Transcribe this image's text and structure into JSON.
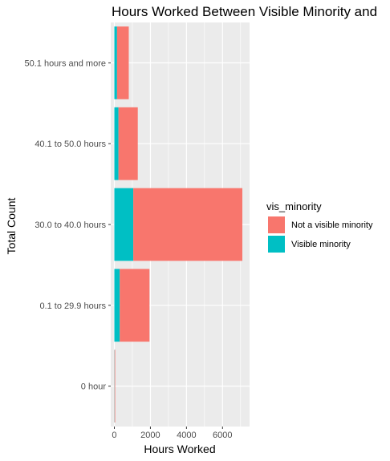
{
  "chart_data": {
    "type": "bar",
    "orientation": "horizontal",
    "stacked": true,
    "title": "Hours Worked Between Visible Minority and",
    "xlabel": "Hours Worked",
    "ylabel": "Total Count",
    "xlim": [
      -200,
      7500
    ],
    "x_ticks": [
      0,
      2000,
      4000,
      6000
    ],
    "grid": true,
    "categories": [
      "0 hour",
      "0.1 to 29.9 hours",
      "30.0 to 40.0 hours",
      "40.1 to 50.0 hours",
      "50.1 hours and more"
    ],
    "series": [
      {
        "name": "Visible minority",
        "color": "#00BFC4",
        "values": [
          10,
          300,
          1050,
          230,
          150
        ]
      },
      {
        "name": "Not a visible minority",
        "color": "#F8766D",
        "values": [
          20,
          1650,
          6050,
          1070,
          650
        ]
      }
    ],
    "legend": {
      "title": "vis_minority",
      "position": "right",
      "items": [
        {
          "label": "Not a visible minority",
          "color": "#F8766D"
        },
        {
          "label": "Visible minority",
          "color": "#00BFC4"
        }
      ]
    },
    "panel_background": "#EBEBEB"
  }
}
